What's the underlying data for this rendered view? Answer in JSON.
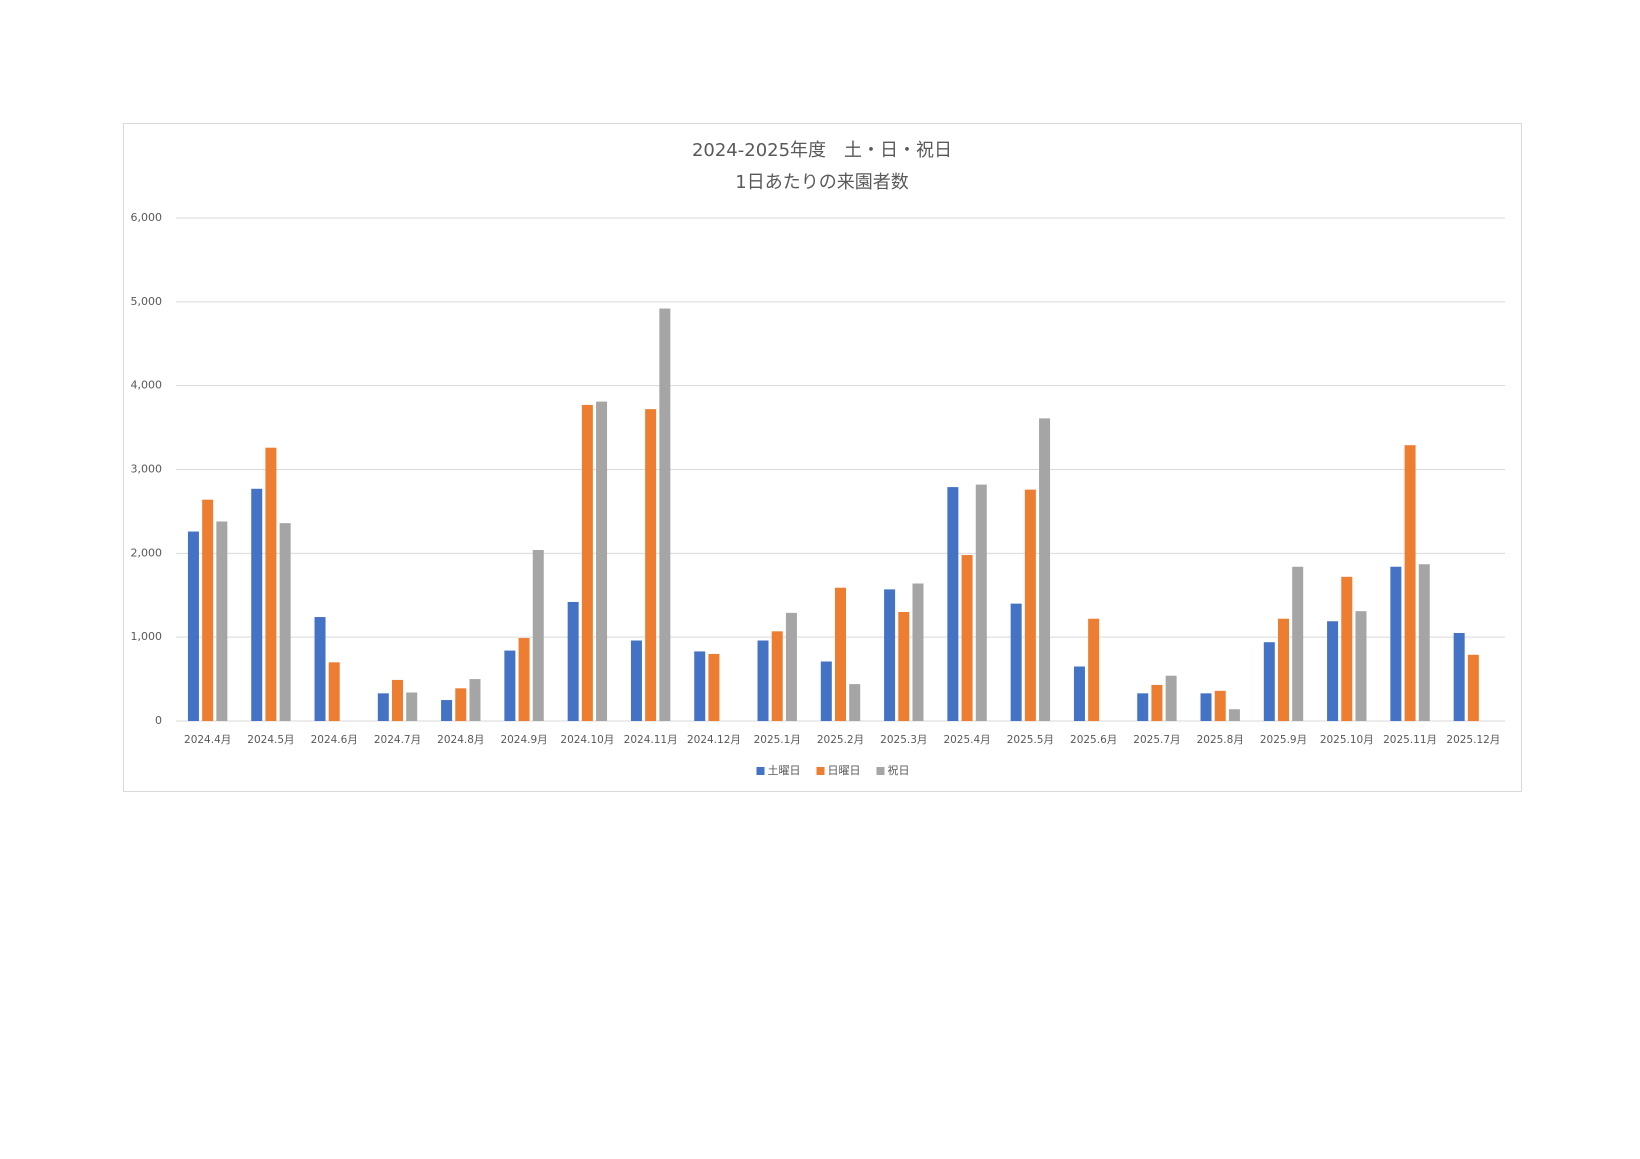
{
  "chart_data": {
    "type": "bar",
    "title": "2024-2025年度　土・日・祝日",
    "subtitle": "1日あたりの来園者数",
    "categories": [
      "2024.4月",
      "2024.5月",
      "2024.6月",
      "2024.7月",
      "2024.8月",
      "2024.9月",
      "2024.10月",
      "2024.11月",
      "2024.12月",
      "2025.1月",
      "2025.2月",
      "2025.3月",
      "2025.4月",
      "2025.5月",
      "2025.6月",
      "2025.7月",
      "2025.8月",
      "2025.9月",
      "2025.10月",
      "2025.11月",
      "2025.12月"
    ],
    "series": [
      {
        "name": "土曜日",
        "color": "#4472c4",
        "values": [
          2260,
          2770,
          1240,
          330,
          250,
          840,
          1420,
          960,
          830,
          960,
          710,
          1570,
          2790,
          1400,
          650,
          330,
          330,
          940,
          1190,
          1840,
          1050
        ]
      },
      {
        "name": "日曜日",
        "color": "#ed7d31",
        "values": [
          2640,
          3260,
          700,
          490,
          390,
          990,
          3770,
          3720,
          800,
          1070,
          1590,
          1300,
          1980,
          2760,
          1220,
          430,
          360,
          1220,
          1720,
          3290,
          790
        ]
      },
      {
        "name": "祝日",
        "color": "#a5a5a5",
        "values": [
          2380,
          2360,
          null,
          340,
          500,
          2040,
          3810,
          4920,
          null,
          1290,
          440,
          1640,
          2820,
          3610,
          null,
          540,
          140,
          1840,
          1310,
          1870,
          null
        ]
      }
    ],
    "ylim": [
      0,
      6000
    ],
    "yticks": [
      0,
      {
        "value": 1000,
        "label": "1,000"
      },
      {
        "value": 2000,
        "label": "2,000"
      },
      {
        "value": 3000,
        "label": "3,000"
      },
      {
        "value": 4000,
        "label": "4,000"
      },
      {
        "value": 5000,
        "label": "5,000"
      },
      {
        "value": 6000,
        "label": "6,000"
      }
    ],
    "grid": true,
    "legend": "bottom"
  }
}
